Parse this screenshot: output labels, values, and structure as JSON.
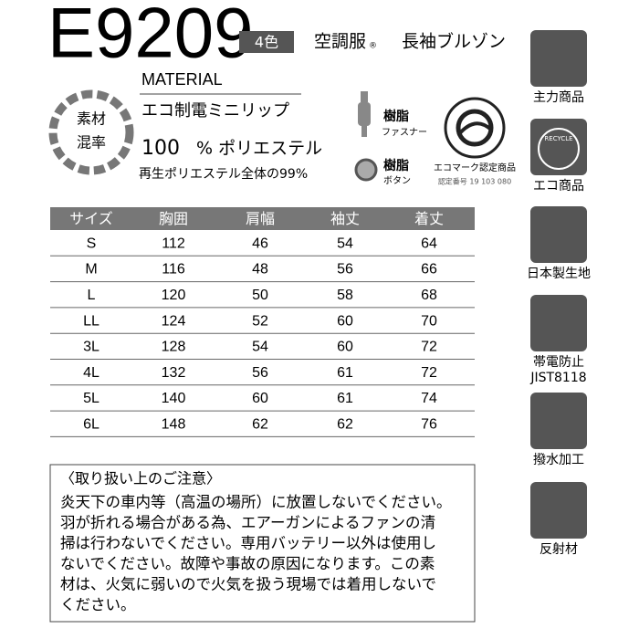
{
  "header": {
    "model": "E9209",
    "colors": "4色",
    "category": "空調服",
    "mark": "®",
    "name": "長袖ブルゾン"
  },
  "material": {
    "heading": "MATERIAL",
    "badge": [
      "素材",
      "混率"
    ],
    "fabric": "エコ制電ミニリップ",
    "percent": "100",
    "fiber": "% ポリエステル",
    "recycled": "再生ポリエステル全体の99%"
  },
  "parts": {
    "fastener": [
      "樹脂",
      "ファスナー"
    ],
    "button": [
      "樹脂",
      "ボタン"
    ],
    "ecomark": {
      "title": "エコマーク認定商品",
      "number": "認定番号 19 103 080"
    }
  },
  "table": {
    "columns": [
      "サイズ",
      "胸囲",
      "肩幅",
      "袖丈",
      "着丈"
    ],
    "rows": [
      [
        "S",
        "112",
        "46",
        "54",
        "64"
      ],
      [
        "M",
        "116",
        "48",
        "56",
        "66"
      ],
      [
        "L",
        "120",
        "50",
        "58",
        "68"
      ],
      [
        "LL",
        "124",
        "52",
        "60",
        "70"
      ],
      [
        "3L",
        "128",
        "54",
        "60",
        "72"
      ],
      [
        "4L",
        "132",
        "56",
        "61",
        "72"
      ],
      [
        "5L",
        "140",
        "60",
        "61",
        "74"
      ],
      [
        "6L",
        "148",
        "62",
        "62",
        "76"
      ]
    ]
  },
  "notice": {
    "title": "〈取り扱い上のご注意〉",
    "lines": [
      "炎天下の車内等（高温の場所）に放置しないでください。",
      "羽が折れる場合がある為、エアーガンによるファンの清",
      "掃は行わないでください。専用バッテリー以外は使用し",
      "ないでください。故障や事故の原因になります。この素",
      "材は、火気に弱いので火気を扱う現場では着用しないで",
      "ください。"
    ]
  },
  "features": [
    {
      "label": [
        "主力商品"
      ]
    },
    {
      "label": [
        "エコ商品"
      ],
      "icon_text": "RECYCLE"
    },
    {
      "label": [
        "日本製生地"
      ]
    },
    {
      "label": [
        "帯電防止",
        "JIST8118"
      ]
    },
    {
      "label": [
        "撥水加工"
      ]
    },
    {
      "label": [
        "反射材"
      ]
    }
  ]
}
